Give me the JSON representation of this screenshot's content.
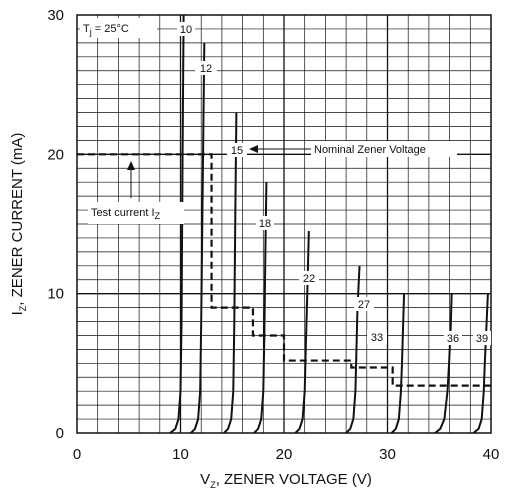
{
  "chart_data": {
    "type": "line",
    "title": "",
    "xlabel": {
      "main": "V",
      "sub": "Z",
      "rest": ", ZENER VOLTAGE (V)"
    },
    "ylabel": {
      "main": "I",
      "sub": "Z",
      "rest": ", ZENER CURRENT (mA)"
    },
    "xlim": [
      0,
      40
    ],
    "ylim": [
      0,
      30
    ],
    "x_ticks": [
      0,
      10,
      20,
      30,
      40
    ],
    "y_ticks": [
      0,
      10,
      20,
      30
    ],
    "x_tick_labels": [
      "0",
      "10",
      "20",
      "30",
      "40"
    ],
    "y_tick_labels": [
      "0",
      "10",
      "20",
      "30"
    ],
    "grid": true,
    "condition": {
      "main": "T",
      "sub": "j",
      "rest": " = 25°C"
    },
    "series": [
      {
        "name": "10",
        "x": [
          9.0,
          9.5,
          9.8,
          10.0,
          10.1,
          10.2,
          10.3
        ],
        "y": [
          0,
          0.3,
          1.0,
          3.0,
          8,
          20,
          30
        ]
      },
      {
        "name": "12",
        "x": [
          11.0,
          11.4,
          11.7,
          11.9,
          12.0,
          12.15,
          12.3
        ],
        "y": [
          0,
          0.3,
          1.0,
          3.0,
          8,
          18,
          28
        ]
      },
      {
        "name": "15",
        "x": [
          14.2,
          14.6,
          14.9,
          15.1,
          15.2,
          15.3,
          15.4
        ],
        "y": [
          0,
          0.3,
          1.0,
          3.0,
          8,
          16,
          23
        ]
      },
      {
        "name": "18",
        "x": [
          17.1,
          17.5,
          17.8,
          18.0,
          18.1,
          18.2,
          18.3
        ],
        "y": [
          0,
          0.3,
          1.0,
          3.0,
          7,
          13,
          18
        ]
      },
      {
        "name": "22",
        "x": [
          21.1,
          21.5,
          21.8,
          22.0,
          22.1,
          22.25,
          22.4
        ],
        "y": [
          0,
          0.3,
          1.0,
          3.0,
          6,
          10,
          14.5
        ]
      },
      {
        "name": "27",
        "x": [
          26.0,
          26.4,
          26.7,
          26.9,
          27.0,
          27.1,
          27.3
        ],
        "y": [
          0,
          0.3,
          1.0,
          3.0,
          6,
          9,
          12
        ]
      },
      {
        "name": "33",
        "x": [
          30.4,
          30.8,
          31.1,
          31.3,
          31.4,
          31.5,
          31.6
        ],
        "y": [
          0,
          0.3,
          1.0,
          3.0,
          5,
          7.5,
          10
        ]
      },
      {
        "name": "36",
        "x": [
          34.6,
          35.1,
          35.5,
          35.8,
          35.95,
          36.1,
          36.2
        ],
        "y": [
          0,
          0.3,
          1.0,
          3.0,
          5,
          7.5,
          10
        ]
      },
      {
        "name": "39",
        "x": [
          38.3,
          38.8,
          39.1,
          39.3,
          39.4,
          39.55,
          39.7
        ],
        "y": [
          0,
          0.3,
          1.0,
          3.0,
          5,
          7.5,
          10
        ]
      }
    ],
    "test_current_step": {
      "x": [
        0,
        13,
        13,
        17,
        17,
        20,
        20,
        26.5,
        26.5,
        30.5,
        30.5,
        40
      ],
      "y": [
        20,
        20,
        9,
        9,
        7,
        7,
        5.2,
        5.2,
        4.7,
        4.7,
        3.4,
        3.4
      ]
    },
    "annotations": {
      "nominal": "Nominal Zener Voltage",
      "test_current": {
        "main": "Test current I",
        "sub": "Z",
        "rest": ""
      }
    },
    "colors": {
      "line": "#111111",
      "grid": "#111111",
      "background": "#ffffff"
    }
  }
}
